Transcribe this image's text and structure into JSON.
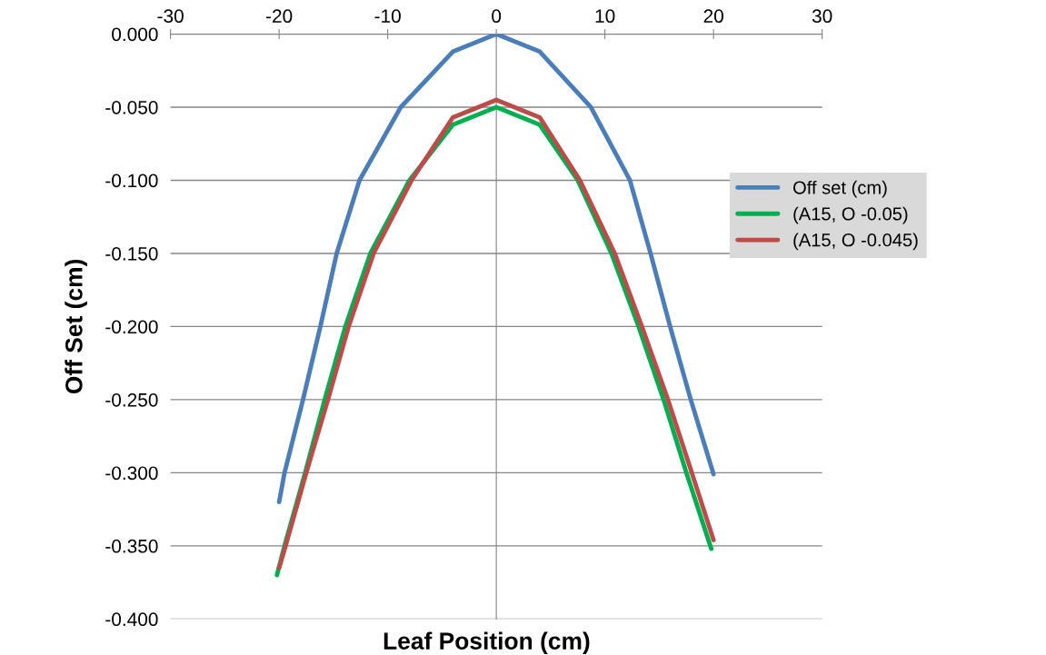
{
  "chart_data": {
    "type": "line",
    "xlabel": "Leaf Position (cm)",
    "ylabel": "Off Set (cm)",
    "xlim": [
      -30,
      30
    ],
    "xticks": [
      -30,
      -20,
      -10,
      0,
      10,
      20,
      30
    ],
    "ylim": [
      -0.4,
      0
    ],
    "yticks": [
      {
        "value": 0,
        "label": "0.000"
      },
      {
        "value": -0.05,
        "label": "-0.050"
      },
      {
        "value": -0.1,
        "label": "-0.100"
      },
      {
        "value": -0.15,
        "label": "-0.150"
      },
      {
        "value": -0.2,
        "label": "-0.200"
      },
      {
        "value": -0.25,
        "label": "-0.250"
      },
      {
        "value": -0.3,
        "label": "-0.300"
      },
      {
        "value": -0.35,
        "label": "-0.350"
      },
      {
        "value": -0.4,
        "label": "-0.400"
      }
    ],
    "grid": "y",
    "legend": "right",
    "marker": "none",
    "line_style": "solid",
    "series": [
      {
        "name": "Off set (cm)",
        "color": "#4a7ebb",
        "x": [
          -20,
          -19.5,
          -17.8,
          -16.2,
          -14.7,
          -12.6,
          -8.8,
          -4,
          0,
          4,
          8.7,
          12.3,
          14.2,
          16.0,
          17.9,
          20
        ],
        "values": [
          -0.32,
          -0.3,
          -0.25,
          -0.2,
          -0.15,
          -0.1,
          -0.05,
          -0.012,
          0,
          -0.012,
          -0.05,
          -0.1,
          -0.15,
          -0.2,
          -0.25,
          -0.301
        ]
      },
      {
        "name": "(A15, O -0.05)",
        "color": "#00b050",
        "x": [
          -20.2,
          -19.5,
          -17.6,
          -15.8,
          -13.9,
          -11.6,
          -8.0,
          -4,
          0,
          4,
          7.5,
          10.6,
          13.1,
          15.4,
          17.5,
          19.7,
          19.8
        ],
        "values": [
          -0.37,
          -0.35,
          -0.3,
          -0.25,
          -0.2,
          -0.15,
          -0.1,
          -0.062,
          -0.05,
          -0.062,
          -0.1,
          -0.15,
          -0.2,
          -0.25,
          -0.3,
          -0.35,
          -0.352
        ]
      },
      {
        "name": "(A15, O -0.045)",
        "color": "#be4b48",
        "x": [
          -20,
          -19.4,
          -17.5,
          -15.5,
          -13.6,
          -11.3,
          -7.8,
          -4,
          0,
          4,
          7.7,
          10.9,
          13.4,
          15.8,
          18.0,
          20
        ],
        "values": [
          -0.365,
          -0.35,
          -0.3,
          -0.25,
          -0.2,
          -0.15,
          -0.1,
          -0.057,
          -0.045,
          -0.057,
          -0.1,
          -0.15,
          -0.2,
          -0.25,
          -0.3,
          -0.346
        ]
      }
    ]
  }
}
